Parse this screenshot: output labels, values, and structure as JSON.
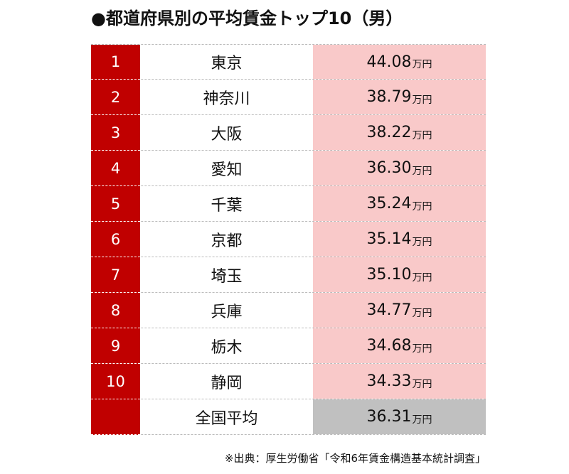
{
  "title": "●都道府県別の平均賃金トップ10（男）",
  "table": {
    "rows": [
      {
        "rank": "1",
        "name": "東京",
        "value": "44.08",
        "unit": "万円"
      },
      {
        "rank": "2",
        "name": "神奈川",
        "value": "38.79",
        "unit": "万円"
      },
      {
        "rank": "3",
        "name": "大阪",
        "value": "38.22",
        "unit": "万円"
      },
      {
        "rank": "4",
        "name": "愛知",
        "value": "36.30",
        "unit": "万円"
      },
      {
        "rank": "5",
        "name": "千葉",
        "value": "35.24",
        "unit": "万円"
      },
      {
        "rank": "6",
        "name": "京都",
        "value": "35.14",
        "unit": "万円"
      },
      {
        "rank": "7",
        "name": "埼玉",
        "value": "35.10",
        "unit": "万円"
      },
      {
        "rank": "8",
        "name": "兵庫",
        "value": "34.77",
        "unit": "万円"
      },
      {
        "rank": "9",
        "name": "栃木",
        "value": "34.68",
        "unit": "万円"
      },
      {
        "rank": "10",
        "name": "静岡",
        "value": "34.33",
        "unit": "万円"
      },
      {
        "name": "全国平均",
        "value": "36.31",
        "unit": "万円",
        "average": true
      }
    ]
  },
  "source": "※出典：厚生労働省「令和6年賃金構造基本統計調査」"
}
